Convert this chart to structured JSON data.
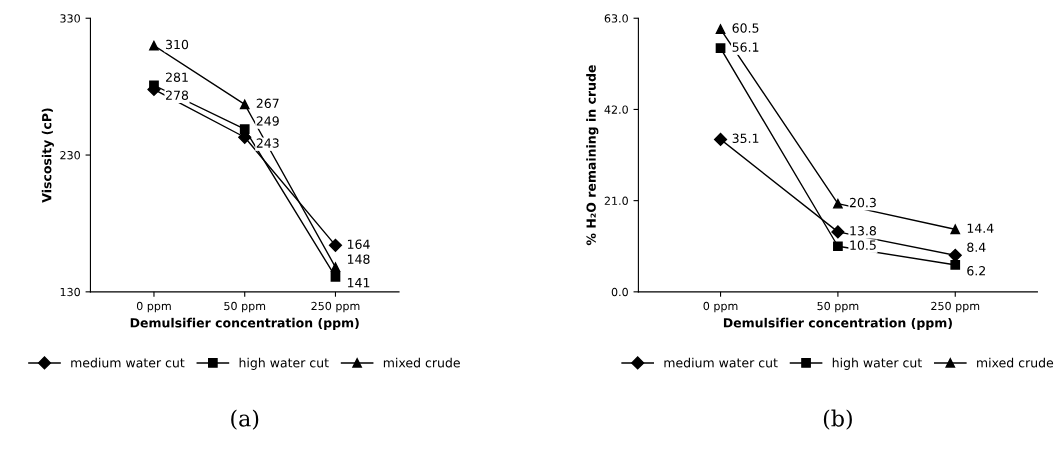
{
  "chart_data": [
    {
      "type": "line",
      "categories": [
        "0 ppm",
        "50 ppm",
        "250 ppm"
      ],
      "xlabel": "Demulsifier concentration (ppm)",
      "ylabel": "Viscosity (cP)",
      "ylim": [
        130,
        330
      ],
      "yticks": [
        130,
        230,
        330
      ],
      "grid": false,
      "legend": "bottom",
      "data_labels": true,
      "line_style": "solid",
      "annotations": [
        "(a)"
      ],
      "series": [
        {
          "name": "medium water cut",
          "color": "#000000",
          "marker": "diamond",
          "values": [
            278,
            243,
            164
          ]
        },
        {
          "name": "high water cut",
          "color": "#000000",
          "marker": "square",
          "values": [
            281,
            249,
            141
          ]
        },
        {
          "name": "mixed crude",
          "color": "#000000",
          "marker": "triangle",
          "values": [
            310,
            267,
            148
          ]
        }
      ]
    },
    {
      "type": "line",
      "categories": [
        "0 ppm",
        "50 ppm",
        "250 ppm"
      ],
      "xlabel": "Demulsifier concentration (ppm)",
      "ylabel": "% H₂O remaining in crude",
      "ylim": [
        0,
        63
      ],
      "yticks": [
        {
          "value": 0,
          "label": "0.0"
        },
        {
          "value": 21,
          "label": "21.0"
        },
        {
          "value": 42,
          "label": "42.0"
        },
        {
          "value": 63,
          "label": "63.0"
        }
      ],
      "grid": false,
      "legend": "bottom",
      "data_labels": true,
      "line_style": "solid",
      "annotations": [
        "(b)"
      ],
      "series": [
        {
          "name": "medium water cut",
          "color": "#000000",
          "marker": "diamond",
          "values": [
            35.1,
            13.8,
            8.4
          ]
        },
        {
          "name": "high water cut",
          "color": "#000000",
          "marker": "square",
          "values": [
            56.1,
            10.5,
            6.2
          ]
        },
        {
          "name": "mixed crude",
          "color": "#000000",
          "marker": "triangle",
          "values": [
            60.5,
            20.3,
            14.4
          ]
        }
      ]
    }
  ]
}
